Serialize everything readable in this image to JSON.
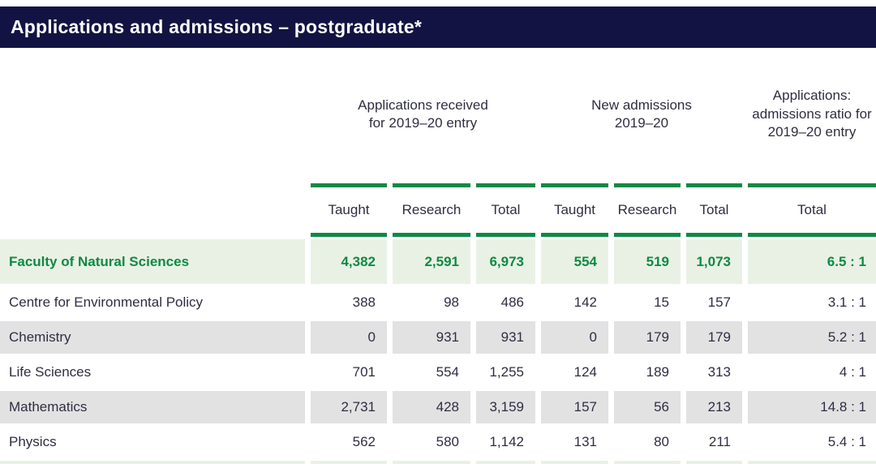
{
  "title": "Applications and admissions – postgraduate*",
  "table": {
    "column_groups": [
      {
        "label": "Applications received\nfor 2019–20 entry",
        "columns": [
          "Taught",
          "Research",
          "Total"
        ]
      },
      {
        "label": "New admissions\n2019–20",
        "columns": [
          "Taught",
          "Research",
          "Total"
        ]
      },
      {
        "label": "Applications: admissions ratio for 2019–20 entry",
        "columns": [
          "Total"
        ]
      }
    ],
    "rows": [
      {
        "label": "Faculty of Natural Sciences",
        "highlight": true,
        "values": [
          "4,382",
          "2,591",
          "6,973",
          "554",
          "519",
          "1,073",
          "6.5 : 1"
        ]
      },
      {
        "label": "Centre for Environmental Policy",
        "highlight": false,
        "values": [
          "388",
          "98",
          "486",
          "142",
          "15",
          "157",
          "3.1 : 1"
        ]
      },
      {
        "label": "Chemistry",
        "highlight": false,
        "values": [
          "0",
          "931",
          "931",
          "0",
          "179",
          "179",
          "5.2 : 1"
        ]
      },
      {
        "label": "Life Sciences",
        "highlight": false,
        "values": [
          "701",
          "554",
          "1,255",
          "124",
          "189",
          "313",
          "4 : 1"
        ]
      },
      {
        "label": "Mathematics",
        "highlight": false,
        "values": [
          "2,731",
          "428",
          "3,159",
          "157",
          "56",
          "213",
          "14.8 : 1"
        ]
      },
      {
        "label": "Physics",
        "highlight": false,
        "values": [
          "562",
          "580",
          "1,142",
          "131",
          "80",
          "211",
          "5.4 : 1"
        ]
      }
    ]
  },
  "colors": {
    "header_bar_bg": "#131343",
    "accent_green": "#0E8A44",
    "highlight_row_bg": "#E9F1E5",
    "alt_row_bg": "#E2E2E3",
    "text_dark": "#2E2E42",
    "title_text": "#FFFFFF"
  }
}
